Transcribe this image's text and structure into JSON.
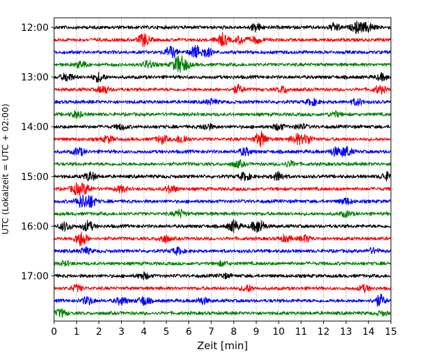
{
  "chart_data": {
    "type": "line",
    "chart_kind": "helicorder (seismogram drum plot)",
    "xlabel": "Zeit  [min]",
    "ylabel": "UTC (Lokalzeit = UTC + 02:00)",
    "xlim": [
      0,
      15
    ],
    "x_ticks": [
      "0",
      "1",
      "2",
      "3",
      "4",
      "5",
      "6",
      "7",
      "8",
      "9",
      "10",
      "11",
      "12",
      "13",
      "14",
      "15"
    ],
    "y_tick_labels": [
      "12:00",
      "13:00",
      "14:00",
      "15:00",
      "16:00",
      "17:00"
    ],
    "traces_start": "12:00",
    "trace_interval_min": 15,
    "trace_count": 24,
    "vertical_grid": true,
    "grid_style": "dotted",
    "colors": [
      "#000000",
      "#ff0000",
      "#0000ff",
      "#008000"
    ],
    "bursts": [
      [
        [
          9.0,
          0.6
        ],
        [
          12.5,
          0.6
        ],
        [
          13.5,
          0.9
        ],
        [
          14.0,
          0.7
        ]
      ],
      [
        [
          4.0,
          1.0
        ],
        [
          7.5,
          1.0
        ],
        [
          8.3,
          0.6
        ],
        [
          9.0,
          0.5
        ]
      ],
      [
        [
          5.2,
          0.9
        ],
        [
          6.3,
          1.0
        ],
        [
          6.8,
          0.7
        ]
      ],
      [
        [
          1.2,
          0.5
        ],
        [
          4.2,
          0.6
        ],
        [
          5.5,
          1.1
        ],
        [
          5.8,
          0.8
        ]
      ],
      [
        [
          0.6,
          0.7
        ],
        [
          2.0,
          0.7
        ],
        [
          14.6,
          0.5
        ]
      ],
      [
        [
          2.2,
          0.6
        ],
        [
          8.2,
          0.6
        ],
        [
          10.2,
          0.5
        ],
        [
          14.5,
          0.6
        ]
      ],
      [
        [
          7.0,
          0.4
        ],
        [
          11.5,
          0.5
        ],
        [
          13.5,
          0.5
        ]
      ],
      [
        [
          1.0,
          0.5
        ],
        [
          12.5,
          0.4
        ]
      ],
      [
        [
          3.0,
          0.4
        ],
        [
          6.8,
          0.5
        ],
        [
          10.0,
          0.5
        ],
        [
          11.0,
          0.4
        ]
      ],
      [
        [
          2.4,
          0.5
        ],
        [
          4.8,
          0.6
        ],
        [
          5.7,
          0.7
        ],
        [
          9.2,
          1.2
        ],
        [
          10.8,
          0.8
        ],
        [
          11.3,
          0.7
        ]
      ],
      [
        [
          1.1,
          0.6
        ],
        [
          8.5,
          0.6
        ],
        [
          12.5,
          0.6
        ],
        [
          13.0,
          0.8
        ]
      ],
      [
        [
          8.2,
          0.5
        ],
        [
          10.5,
          0.4
        ]
      ],
      [
        [
          1.6,
          0.7
        ],
        [
          8.5,
          0.6
        ],
        [
          10.0,
          0.7
        ],
        [
          14.8,
          0.6
        ]
      ],
      [
        [
          1.0,
          0.8
        ],
        [
          1.4,
          0.7
        ],
        [
          3.0,
          0.5
        ],
        [
          5.2,
          0.6
        ]
      ],
      [
        [
          1.2,
          0.9
        ],
        [
          1.6,
          1.0
        ],
        [
          13.0,
          0.5
        ]
      ],
      [
        [
          5.6,
          0.6
        ],
        [
          13.0,
          0.4
        ]
      ],
      [
        [
          0.5,
          0.7
        ],
        [
          1.5,
          0.8
        ],
        [
          8.0,
          0.9
        ],
        [
          9.0,
          0.6
        ],
        [
          9.2,
          0.6
        ]
      ],
      [
        [
          1.2,
          1.2
        ],
        [
          4.9,
          0.6
        ],
        [
          10.3,
          0.5
        ],
        [
          11.2,
          0.5
        ]
      ],
      [
        [
          1.4,
          0.5
        ],
        [
          5.5,
          0.5
        ],
        [
          14.2,
          0.4
        ]
      ],
      [
        [
          0.5,
          0.3
        ],
        [
          7.5,
          0.3
        ]
      ],
      [
        [
          4.0,
          0.5
        ],
        [
          7.6,
          0.3
        ]
      ],
      [
        [
          1.0,
          0.5
        ],
        [
          8.6,
          0.5
        ],
        [
          13.8,
          0.5
        ]
      ],
      [
        [
          1.5,
          0.6
        ],
        [
          3.0,
          0.6
        ],
        [
          4.0,
          0.7
        ],
        [
          6.6,
          0.5
        ],
        [
          14.5,
          0.9
        ]
      ],
      [
        [
          0.3,
          0.6
        ],
        [
          14.6,
          0.3
        ]
      ]
    ]
  }
}
